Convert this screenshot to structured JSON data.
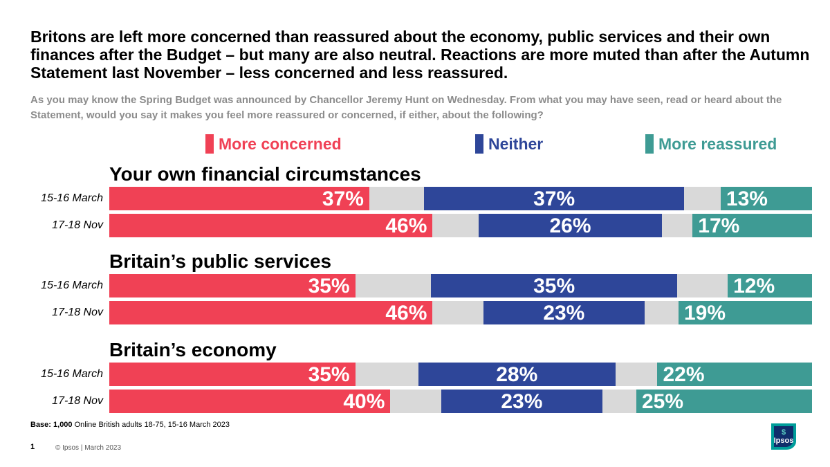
{
  "header": {
    "title": "Britons are left more concerned than reassured about the economy, public services and their own finances after the Budget – but many are also neutral.  Reactions are more muted than after the Autumn Statement last November – less concerned and less reassured.",
    "subtitle": "As you may know the Spring Budget was announced by Chancellor Jeremy Hunt on Wednesday. From what you may have seen, read or heard about the Statement, would you say it makes you feel more reassured or concerned, if either, about the following?"
  },
  "colors": {
    "concerned": "#f04155",
    "neither": "#2e4699",
    "reassured": "#3e9b94",
    "gap": "#d9d9d9"
  },
  "chart_data": {
    "type": "bar",
    "orientation": "horizontal-stacked-diverging",
    "legend": [
      "More concerned",
      "Neither",
      "More reassured"
    ],
    "groups": [
      {
        "title": "Your own financial circumstances",
        "rows": [
          {
            "label": "15-16 March",
            "concerned": 37,
            "neither": 37,
            "reassured": 13,
            "concerned_text": "37%",
            "neither_text": "37%",
            "reassured_text": "13%"
          },
          {
            "label": "17-18 Nov",
            "concerned": 46,
            "neither": 26,
            "reassured": 17,
            "concerned_text": "46%",
            "neither_text": "26%",
            "reassured_text": "17%"
          }
        ]
      },
      {
        "title": "Britain’s public services",
        "rows": [
          {
            "label": "15-16 March",
            "concerned": 35,
            "neither": 35,
            "reassured": 12,
            "concerned_text": "35%",
            "neither_text": "35%",
            "reassured_text": "12%"
          },
          {
            "label": "17-18 Nov",
            "concerned": 46,
            "neither": 23,
            "reassured": 19,
            "concerned_text": "46%",
            "neither_text": "23%",
            "reassured_text": "19%"
          }
        ]
      },
      {
        "title": "Britain’s economy",
        "rows": [
          {
            "label": "15-16 March",
            "concerned": 35,
            "neither": 28,
            "reassured": 22,
            "concerned_text": "35%",
            "neither_text": "28%",
            "reassured_text": "22%"
          },
          {
            "label": "17-18 Nov",
            "concerned": 40,
            "neither": 23,
            "reassured": 25,
            "concerned_text": "40%",
            "neither_text": "23%",
            "reassured_text": "25%"
          }
        ]
      }
    ]
  },
  "footer": {
    "base_bold": "Base: 1,000",
    "base_rest": " Online British adults 18-75, 15-16 March 2023",
    "page_number": "1",
    "copyright": "© Ipsos | March 2023",
    "logo_text": "Ipsos"
  }
}
